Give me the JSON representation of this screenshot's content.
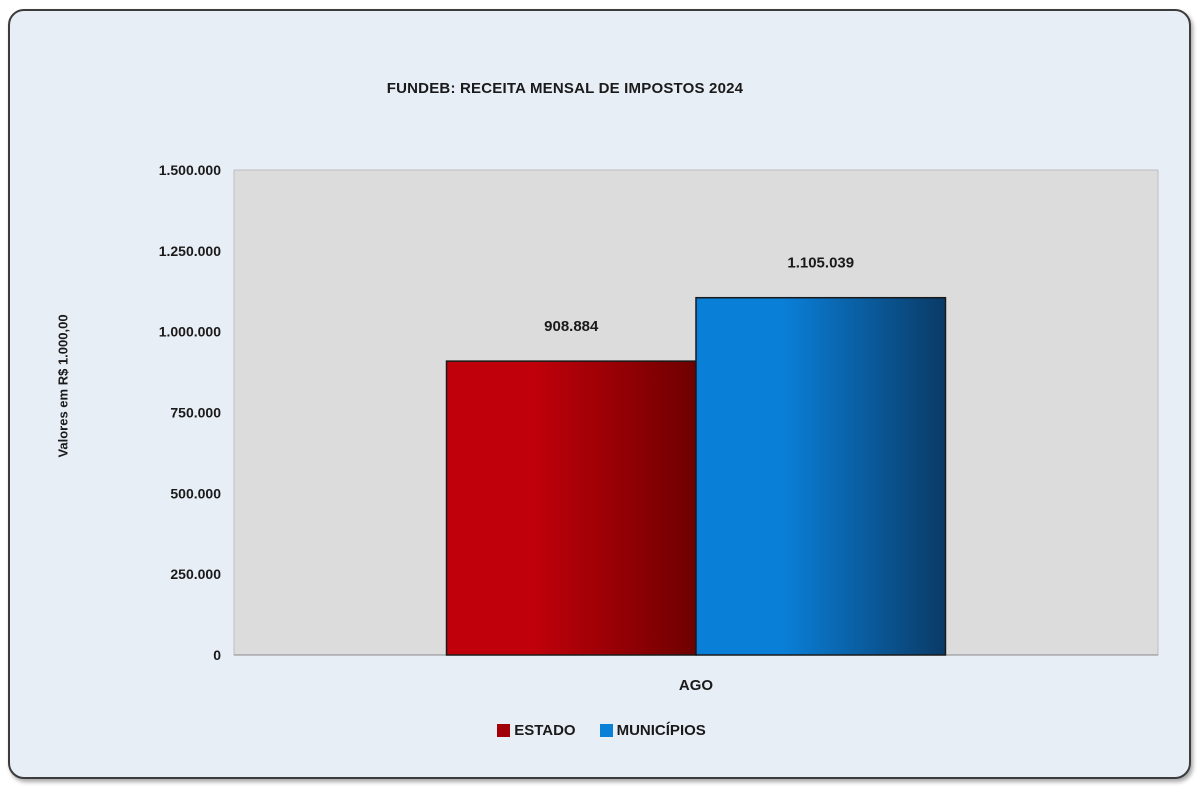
{
  "chart_data": {
    "type": "bar",
    "title": "FUNDEB: RECEITA MENSAL DE IMPOSTOS 2024",
    "ylabel": "Valores em R$ 1.000,00",
    "xlabel": "",
    "categories": [
      "AGO"
    ],
    "series": [
      {
        "name": "ESTADO",
        "values": [
          908884
        ],
        "value_labels": [
          "908.884"
        ],
        "color": "#c0000a",
        "color_dark": "#6e0000"
      },
      {
        "name": "MUNICÍPIOS",
        "values": [
          1105039
        ],
        "value_labels": [
          "1.105.039"
        ],
        "color": "#0a7fd8",
        "color_dark": "#0a3a66"
      }
    ],
    "ylim": [
      0,
      1500000
    ],
    "yticks": [
      0,
      250000,
      500000,
      750000,
      1000000,
      1250000,
      1500000
    ],
    "ytick_labels": [
      "0",
      "250.000",
      "500.000",
      "750.000",
      "1.000.000",
      "1.250.000",
      "1.500.000"
    ],
    "grid": false,
    "legend_position": "bottom",
    "plot_background": "#dcdcdc"
  }
}
